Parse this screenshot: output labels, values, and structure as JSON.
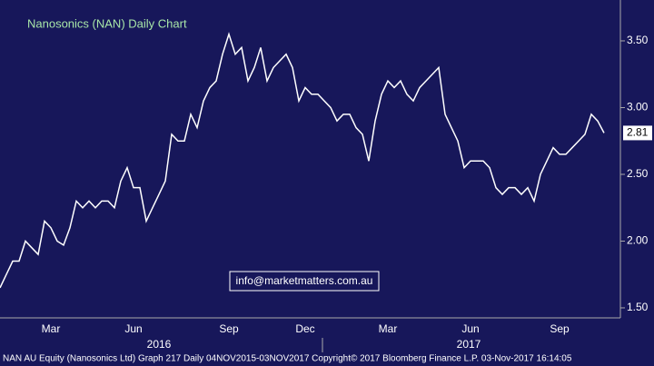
{
  "chart_data": {
    "type": "line",
    "title": "Nanosonics (NAN) Daily Chart",
    "annotation": "info@marketmatters.com.au",
    "footer": "NAN AU Equity (Nanosonics Ltd) Graph 217  Daily 04NOV2015-03NOV2017  Copyright© 2017 Bloomberg Finance L.P.  03-Nov-2017 16:14:05",
    "year_labels": [
      "2016",
      "2017"
    ],
    "categories": [
      null,
      null,
      null,
      null,
      null,
      null,
      null,
      null,
      "Mar",
      null,
      null,
      null,
      null,
      null,
      null,
      null,
      null,
      null,
      null,
      null,
      null,
      "Jun",
      null,
      null,
      null,
      null,
      null,
      null,
      null,
      null,
      null,
      null,
      null,
      null,
      null,
      null,
      "Sep",
      null,
      null,
      null,
      null,
      null,
      null,
      null,
      null,
      null,
      null,
      null,
      "Dec",
      null,
      null,
      null,
      null,
      null,
      null,
      null,
      null,
      null,
      null,
      null,
      null,
      "Mar",
      null,
      null,
      null,
      null,
      null,
      null,
      null,
      null,
      null,
      null,
      null,
      null,
      "Jun",
      null,
      null,
      null,
      null,
      null,
      null,
      null,
      null,
      null,
      null,
      null,
      null,
      null,
      "Sep",
      null,
      null,
      null,
      null,
      null,
      null,
      null
    ],
    "series": [
      {
        "name": "NAN AU Equity",
        "color": "#ffffff",
        "values": [
          1.65,
          1.75,
          1.85,
          1.85,
          2.0,
          1.95,
          1.9,
          2.15,
          2.1,
          2.0,
          1.97,
          2.1,
          2.3,
          2.25,
          2.3,
          2.25,
          2.3,
          2.3,
          2.25,
          2.45,
          2.55,
          2.4,
          2.4,
          2.15,
          2.25,
          2.35,
          2.45,
          2.8,
          2.75,
          2.75,
          2.95,
          2.85,
          3.05,
          3.15,
          3.2,
          3.4,
          3.55,
          3.4,
          3.45,
          3.2,
          3.3,
          3.45,
          3.2,
          3.3,
          3.35,
          3.4,
          3.3,
          3.05,
          3.15,
          3.1,
          3.1,
          3.05,
          3.0,
          2.9,
          2.95,
          2.95,
          2.85,
          2.8,
          2.6,
          2.9,
          3.1,
          3.2,
          3.15,
          3.2,
          3.1,
          3.05,
          3.15,
          3.2,
          3.25,
          3.3,
          2.95,
          2.85,
          2.75,
          2.55,
          2.6,
          2.6,
          2.6,
          2.55,
          2.4,
          2.35,
          2.4,
          2.4,
          2.35,
          2.4,
          2.3,
          2.5,
          2.6,
          2.7,
          2.65,
          2.65,
          2.7,
          2.75,
          2.8,
          2.95,
          2.9,
          2.81
        ]
      }
    ],
    "ylim": [
      1.425,
      3.806
    ],
    "yticks": [
      {
        "value": 1.5,
        "label": "1.50"
      },
      {
        "value": 2.0,
        "label": "2.00"
      },
      {
        "value": 2.5,
        "label": "2.50"
      },
      {
        "value": 3.0,
        "label": "3.00"
      },
      {
        "value": 3.5,
        "label": "3.50"
      }
    ]
  }
}
